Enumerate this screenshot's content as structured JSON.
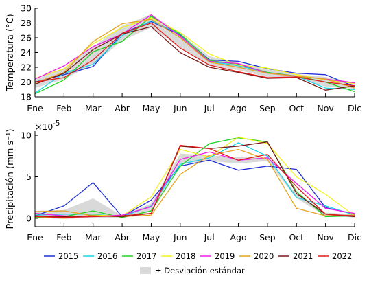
{
  "colors": {
    "2015": "#1f2fd6",
    "2016": "#19d3e6",
    "2017": "#1fd21f",
    "2018": "#f2f21e",
    "2019": "#f01de8",
    "2020": "#e6a21e",
    "2021": "#7a1818",
    "2022": "#e01a1a",
    "sd_band": "#d9d9d9",
    "axis": "#000000"
  },
  "chart_data": [
    {
      "type": "line",
      "ylabel": "Temperatura (°C)",
      "categories": [
        "Ene",
        "Feb",
        "Mar",
        "Abr",
        "May",
        "Jun",
        "Jul",
        "Ago",
        "Sep",
        "Oct",
        "Nov",
        "Dic"
      ],
      "ylim": [
        18,
        30
      ],
      "yticks": [
        18,
        20,
        22,
        24,
        26,
        28,
        30
      ],
      "sd_band": {
        "lower": [
          19.2,
          20.4,
          22.4,
          25.6,
          27.4,
          24.7,
          22.2,
          21.6,
          20.7,
          20.6,
          19.4,
          19.1
        ],
        "upper": [
          20.3,
          21.9,
          24.8,
          27.6,
          29.2,
          26.6,
          23.5,
          22.6,
          21.7,
          21.1,
          20.7,
          19.9
        ]
      },
      "series": [
        {
          "name": "2015",
          "values": [
            20.0,
            21.0,
            22.1,
            26.6,
            28.2,
            26.4,
            23.0,
            22.8,
            21.8,
            21.2,
            21.0,
            19.4
          ]
        },
        {
          "name": "2016",
          "values": [
            18.5,
            21.2,
            22.4,
            26.3,
            28.3,
            26.5,
            22.8,
            22.2,
            21.3,
            20.8,
            19.2,
            19.0
          ]
        },
        {
          "name": "2017",
          "values": [
            18.4,
            20.3,
            24.1,
            25.5,
            28.9,
            26.5,
            22.9,
            22.4,
            21.3,
            20.8,
            20.0,
            18.7
          ]
        },
        {
          "name": "2018",
          "values": [
            20.5,
            21.8,
            25.2,
            27.4,
            28.7,
            26.7,
            23.8,
            22.3,
            21.9,
            21.0,
            20.3,
            19.8
          ]
        },
        {
          "name": "2019",
          "values": [
            20.4,
            22.2,
            24.8,
            26.5,
            29.1,
            26.2,
            22.8,
            22.5,
            21.2,
            20.8,
            20.4,
            19.9
          ]
        },
        {
          "name": "2020",
          "values": [
            19.9,
            21.3,
            25.5,
            27.9,
            28.5,
            26.0,
            22.7,
            22.0,
            21.2,
            20.8,
            20.4,
            19.2
          ]
        },
        {
          "name": "2021",
          "values": [
            19.7,
            21.2,
            24.4,
            26.5,
            27.5,
            24.0,
            22.0,
            21.3,
            20.5,
            20.6,
            18.9,
            19.5
          ]
        },
        {
          "name": "2022",
          "values": [
            20.0,
            20.6,
            23.0,
            26.6,
            28.0,
            24.6,
            22.3,
            21.4,
            20.6,
            20.7,
            20.0,
            19.5
          ]
        }
      ]
    },
    {
      "type": "line",
      "ylabel": "Precipitación (mm s⁻¹)",
      "multiplier_base": "×10",
      "multiplier_exponent": "-5",
      "categories": [
        "Ene",
        "Feb",
        "Mar",
        "Abr",
        "May",
        "Jun",
        "Jul",
        "Ago",
        "Sep",
        "Oct",
        "Nov",
        "Dic"
      ],
      "ylim": [
        -1,
        10.5
      ],
      "yticks": [
        0,
        5,
        10
      ],
      "sd_band": {
        "lower": [
          0.1,
          -0.1,
          0.1,
          0.0,
          0.8,
          6.6,
          6.9,
          6.6,
          6.9,
          2.4,
          0.3,
          0.1
        ],
        "upper": [
          0.9,
          1.0,
          2.4,
          0.3,
          1.8,
          7.8,
          7.6,
          7.4,
          7.3,
          2.9,
          0.7,
          0.5
        ]
      },
      "series": [
        {
          "name": "2015",
          "values": [
            0.3,
            1.5,
            4.3,
            0.2,
            2.2,
            6.3,
            7.0,
            5.8,
            6.3,
            5.9,
            1.3,
            0.5
          ]
        },
        {
          "name": "2016",
          "values": [
            0.4,
            0.5,
            0.5,
            0.2,
            1.5,
            6.5,
            7.3,
            9.1,
            7.5,
            2.5,
            1.5,
            0.4
          ]
        },
        {
          "name": "2017",
          "values": [
            0.1,
            0.2,
            0.9,
            0.1,
            0.9,
            6.3,
            9.0,
            9.7,
            9.2,
            3.2,
            0.2,
            0.3
          ]
        },
        {
          "name": "2018",
          "values": [
            0.2,
            0.0,
            0.4,
            0.3,
            2.6,
            8.3,
            7.4,
            9.8,
            9.0,
            5.0,
            2.9,
            0.3
          ]
        },
        {
          "name": "2019",
          "values": [
            0.6,
            0.3,
            0.2,
            0.4,
            1.4,
            7.1,
            8.0,
            7.0,
            7.3,
            4.2,
            1.2,
            0.6
          ]
        },
        {
          "name": "2020",
          "values": [
            0.8,
            0.9,
            0.3,
            0.2,
            0.4,
            5.3,
            7.6,
            8.3,
            7.1,
            1.2,
            0.3,
            0.4
          ]
        },
        {
          "name": "2021",
          "values": [
            0.3,
            0.2,
            0.3,
            0.2,
            0.6,
            8.7,
            8.4,
            8.7,
            9.2,
            3.0,
            0.5,
            0.2
          ]
        },
        {
          "name": "2022",
          "values": [
            0.2,
            0.1,
            0.2,
            0.3,
            0.6,
            8.8,
            8.4,
            7.0,
            7.7,
            3.8,
            0.5,
            0.3
          ]
        }
      ]
    }
  ],
  "legend": {
    "years": [
      "2015",
      "2016",
      "2017",
      "2018",
      "2019",
      "2020",
      "2021",
      "2022"
    ],
    "sd_label": "± Desviación estándar"
  }
}
